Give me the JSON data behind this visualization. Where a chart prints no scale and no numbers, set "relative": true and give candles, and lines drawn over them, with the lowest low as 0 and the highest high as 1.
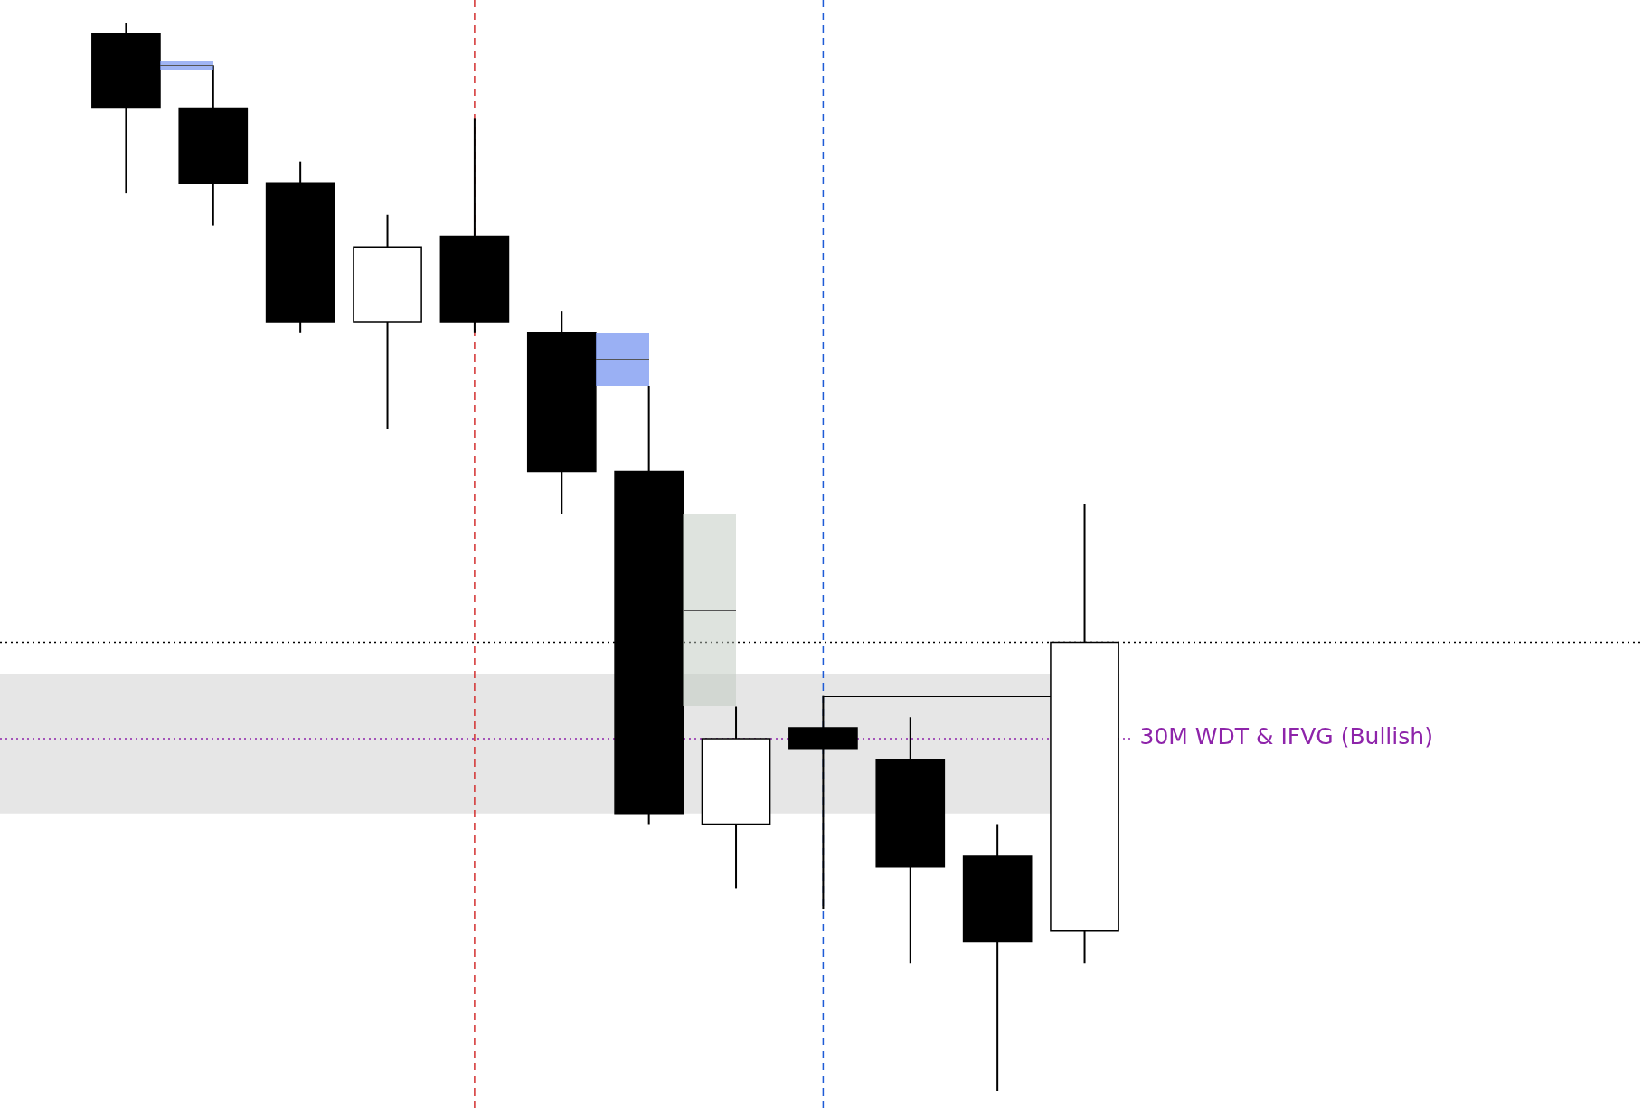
{
  "chart_data": {
    "type": "candlestick",
    "relative": true,
    "categories": [
      null,
      null,
      null,
      null,
      null,
      null,
      null,
      null,
      null,
      null,
      null,
      null
    ],
    "ohlc": [
      [
        0.99,
        1.0,
        0.84,
        0.92
      ],
      [
        0.92,
        0.96,
        0.81,
        0.85
      ],
      [
        0.85,
        0.87,
        0.71,
        0.72
      ],
      [
        0.72,
        0.82,
        0.62,
        0.79
      ],
      [
        0.8,
        0.91,
        0.71,
        0.72
      ],
      [
        0.71,
        0.73,
        0.54,
        0.58
      ],
      [
        0.58,
        0.66,
        0.25,
        0.26
      ],
      [
        0.25,
        0.36,
        0.19,
        0.33
      ],
      [
        0.34,
        0.37,
        0.17,
        0.32
      ],
      [
        0.31,
        0.35,
        0.12,
        0.21
      ],
      [
        0.22,
        0.25,
        0.0,
        0.14
      ],
      [
        0.15,
        0.55,
        0.12,
        0.42
      ]
    ],
    "colors": [
      "#000000",
      "#000000",
      "#000000",
      "#ffffff",
      "#000000",
      "#000000",
      "#000000",
      "#ffffff",
      "#000000",
      "#000000",
      "#000000",
      "#ffffff"
    ],
    "ref_lines": [
      {
        "axis": "y",
        "value": 0.42,
        "color": "#000000",
        "line_style": "dotted"
      },
      {
        "axis": "y",
        "value": 0.33,
        "label": "30M WDT & IFVG (Bullish)",
        "color": "#8e24aa",
        "line_style": "dotted"
      }
    ],
    "bands": [
      {
        "axis": "y",
        "from": 0.26,
        "to": 0.39,
        "color": "#e6e6e6"
      }
    ],
    "tick_labels": false,
    "legend": false
  }
}
